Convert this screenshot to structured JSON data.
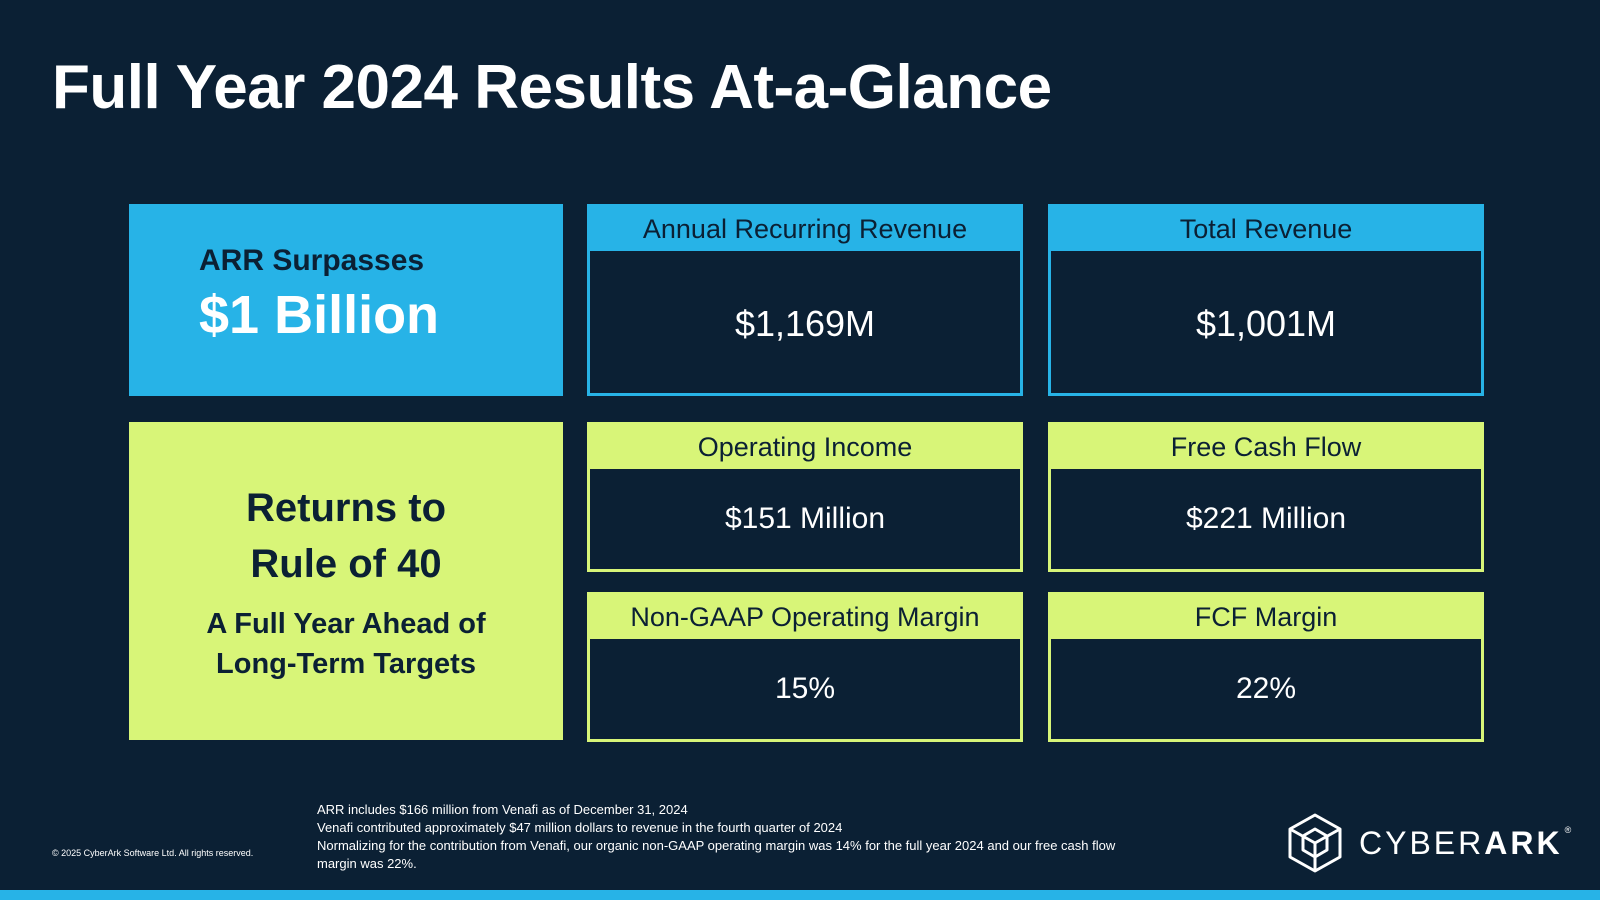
{
  "title": "Full Year 2024 Results At-a-Glance",
  "arr_feature": {
    "line1": "ARR Surpasses",
    "line2": "$1 Billion"
  },
  "rule_feature": {
    "line1": "Returns to",
    "line2": "Rule of 40",
    "line3": "A Full Year Ahead of",
    "line4": "Long-Term Targets"
  },
  "metrics": [
    {
      "label": "Annual Recurring Revenue",
      "value": "$1,169M"
    },
    {
      "label": "Total Revenue",
      "value": "$1,001M"
    },
    {
      "label": "Operating Income",
      "value": "$151 Million"
    },
    {
      "label": "Free Cash Flow",
      "value": "$221 Million"
    },
    {
      "label": "Non-GAAP Operating Margin",
      "value": "15%"
    },
    {
      "label": "FCF Margin",
      "value": "22%"
    }
  ],
  "footnotes": [
    "ARR includes $166 million from Venafi as of December 31, 2024",
    "Venafi contributed approximately $47 million dollars to revenue in the fourth quarter of 2024",
    "Normalizing for the contribution from Venafi, our organic non-GAAP operating margin was 14% for the full year 2024 and our free cash flow margin was 22%."
  ],
  "copyright": "© 2025 CyberArk Software Ltd. All rights reserved.",
  "logo": {
    "word_light": "CYBER",
    "word_bold": "ARK",
    "reg": "®",
    "icon": "cube-logo-icon"
  },
  "colors": {
    "background": "#0b2034",
    "blue": "#27b3e7",
    "green": "#d8f578"
  }
}
